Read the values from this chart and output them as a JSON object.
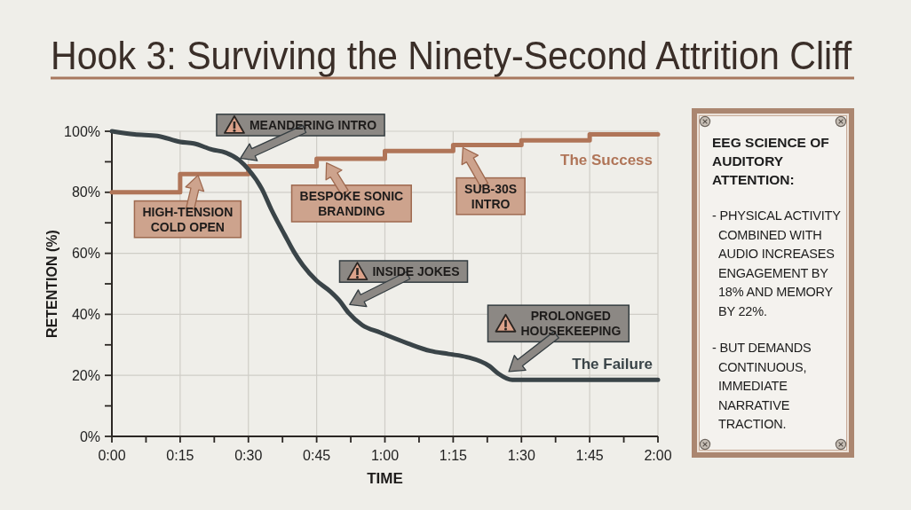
{
  "chart_data": [
    {
      "type": "line",
      "title": "Hook 3: Surviving the Ninety-Second Attrition Cliff",
      "xlabel": "TIME",
      "ylabel": "RETENTION (%)",
      "xlim": [
        0,
        120
      ],
      "xticks": [
        {
          "value": 0,
          "label": "0:00"
        },
        {
          "value": 7.5,
          "label": null
        },
        {
          "value": 15,
          "label": "0:15"
        },
        {
          "value": 22.5,
          "label": null
        },
        {
          "value": 30,
          "label": "0:30"
        },
        {
          "value": 37.5,
          "label": null
        },
        {
          "value": 45,
          "label": "0:45"
        },
        {
          "value": 52.5,
          "label": null
        },
        {
          "value": 60,
          "label": "1:00"
        },
        {
          "value": 67.5,
          "label": null
        },
        {
          "value": 75,
          "label": "1:15"
        },
        {
          "value": 82.5,
          "label": null
        },
        {
          "value": 90,
          "label": "1:30"
        },
        {
          "value": 97.5,
          "label": null
        },
        {
          "value": 105,
          "label": "1:45"
        },
        {
          "value": 112.5,
          "label": null
        },
        {
          "value": 120,
          "label": "2:00"
        }
      ],
      "ylim": [
        0,
        100
      ],
      "yticks": [
        {
          "value": 0,
          "label": "0%"
        },
        {
          "value": 10,
          "label": null
        },
        {
          "value": 20,
          "label": "20%"
        },
        {
          "value": 30,
          "label": null
        },
        {
          "value": 40,
          "label": "40%"
        },
        {
          "value": 50,
          "label": null
        },
        {
          "value": 60,
          "label": "60%"
        },
        {
          "value": 70,
          "label": null
        },
        {
          "value": 80,
          "label": "80%"
        },
        {
          "value": 90,
          "label": null
        },
        {
          "value": 100,
          "label": "100%"
        }
      ],
      "grid": true,
      "series": [
        {
          "name": "The Success",
          "type": "step",
          "color": "#b07558",
          "x": [
            0,
            15,
            30,
            45,
            60,
            75,
            90,
            105,
            120
          ],
          "values": [
            80,
            86,
            88.5,
            91,
            93.5,
            95.5,
            97,
            99,
            99
          ]
        },
        {
          "name": "The Failure",
          "type": "line",
          "color": "#3a4448",
          "x": [
            0,
            5,
            10,
            15,
            18,
            22,
            25,
            28,
            30,
            33,
            35,
            38,
            40,
            42,
            45,
            48,
            50,
            52,
            55,
            59,
            65,
            70,
            74,
            78,
            83,
            85,
            88,
            90,
            120
          ],
          "values": [
            100,
            99,
            98.5,
            96.5,
            96,
            94,
            93,
            90.5,
            87.5,
            81,
            74.5,
            66,
            60.5,
            56,
            51,
            47.5,
            44.5,
            40.5,
            36.5,
            34,
            30.5,
            28,
            27,
            26,
            23,
            20.5,
            18.5,
            18.5,
            18.5
          ]
        }
      ],
      "annotations": [
        {
          "text": "MEANDERING INTRO",
          "x": 28,
          "y": 91
        },
        {
          "text": "HIGH-TENSION\nCOLD OPEN",
          "x": 19,
          "y": 86
        },
        {
          "text": "BESPOKE SONIC\nBRANDING",
          "x": 47,
          "y": 90
        },
        {
          "text": "SUB-30S\nINTRO",
          "x": 77,
          "y": 95
        },
        {
          "text": "INSIDE JOKES",
          "x": 52,
          "y": 43
        },
        {
          "text": "PROLONGED\nHOUSEKEEPING",
          "x": 87,
          "y": 21
        }
      ]
    },
    {
      "type": "other",
      "title": "EEG SCIENCE OF AUDITORY ATTENTION:",
      "annotations": [
        "- PHYSICAL ACTIVITY COMBINED WITH AUDIO INCREASES ENGAGEMENT BY 18% AND MEMORY BY 22%.",
        "- BUT DEMANDS CONTINUOUS, IMMEDIATE NARRATIVE TRACTION."
      ]
    }
  ]
}
